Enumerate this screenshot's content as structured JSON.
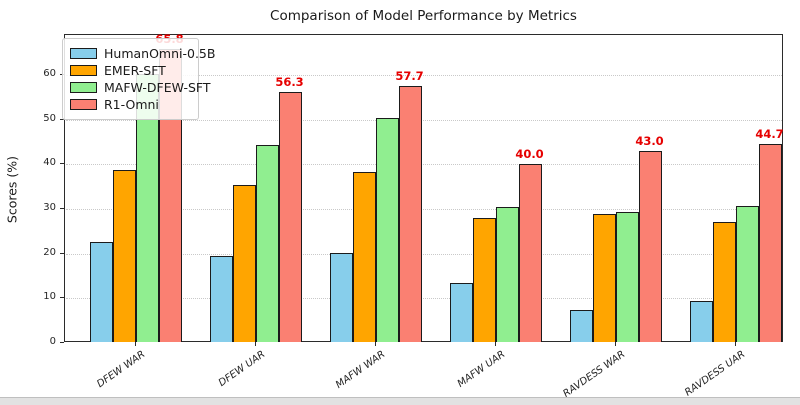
{
  "chart_data": {
    "type": "bar",
    "title": "Comparison of Model Performance by Metrics",
    "xlabel": "",
    "ylabel": "Scores (%)",
    "categories": [
      "DFEW WAR",
      "DFEW UAR",
      "MAFW WAR",
      "MAFW UAR",
      "RAVDESS WAR",
      "RAVDESS UAR"
    ],
    "series": [
      {
        "name": "HumanOmni-0.5B",
        "color": "#87CEEB",
        "values": [
          22.64,
          19.44,
          20.18,
          13.52,
          7.33,
          9.38
        ]
      },
      {
        "name": "EMER-SFT",
        "color": "#FFA500",
        "values": [
          38.66,
          35.31,
          38.39,
          28.02,
          29.0,
          27.19
        ]
      },
      {
        "name": "MAFW-DFEW-SFT",
        "color": "#90EE90",
        "values": [
          60.23,
          44.39,
          50.44,
          30.39,
          29.33,
          30.75
        ]
      },
      {
        "name": "R1-Omni",
        "color": "#FA8072",
        "values": [
          65.83,
          56.27,
          57.68,
          40.04,
          43.0,
          44.69
        ],
        "value_labels": [
          "65.8",
          "56.3",
          "57.7",
          "40.0",
          "43.0",
          "44.7"
        ],
        "value_label_color": "#e60000"
      }
    ],
    "ylim": [
      0,
      69
    ],
    "yticks": [
      0,
      10,
      20,
      30,
      40,
      50,
      60
    ],
    "grid": "horizontal-dotted",
    "legend_position": "upper-left",
    "bar_edge_color": "#1b1b1b"
  }
}
